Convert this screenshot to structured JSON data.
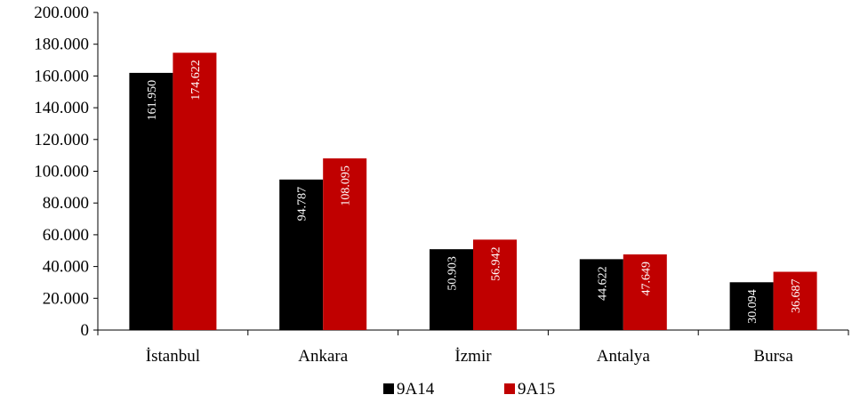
{
  "chart_data": {
    "type": "bar",
    "categories": [
      "İstanbul",
      "Ankara",
      "İzmir",
      "Antalya",
      "Bursa"
    ],
    "series": [
      {
        "name": "9A14",
        "color": "#000000",
        "values": [
          161950,
          94787,
          50903,
          44622,
          30094
        ],
        "labels": [
          "161.950",
          "94.787",
          "50.903",
          "44.622",
          "30.094"
        ]
      },
      {
        "name": "9A15",
        "color": "#c00000",
        "values": [
          174622,
          108095,
          56942,
          47649,
          36687
        ],
        "labels": [
          "174.622",
          "108.095",
          "56.942",
          "47.649",
          "36.687"
        ]
      }
    ],
    "ylim": [
      0,
      200000
    ],
    "yticks": [
      0,
      20000,
      40000,
      60000,
      80000,
      100000,
      120000,
      140000,
      160000,
      180000,
      200000
    ],
    "ytick_labels": [
      "0",
      "20.000",
      "40.000",
      "60.000",
      "80.000",
      "100.000",
      "120.000",
      "140.000",
      "160.000",
      "180.000",
      "200.000"
    ],
    "grid": false,
    "legend_position": "bottom"
  }
}
